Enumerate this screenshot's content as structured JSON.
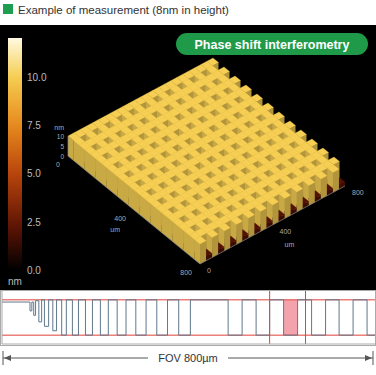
{
  "title": "Example of measurement (8nm in height)",
  "badge": "Phase shift interferometry",
  "chart_data": [
    {
      "type": "surface",
      "xlabel": "um",
      "ylabel": "um",
      "zlabel": "nm",
      "xlim": [
        0,
        800
      ],
      "ylim": [
        0,
        800
      ],
      "zlim": [
        0,
        10
      ],
      "xticks": [
        0,
        400,
        800
      ],
      "yticks": [
        0,
        400,
        800
      ],
      "zticks": [
        0,
        5,
        10
      ],
      "z": [
        [
          10,
          10,
          10,
          10,
          10,
          10,
          10,
          10,
          10,
          10,
          10,
          10,
          10,
          10,
          10,
          10,
          10,
          10,
          10,
          10,
          10,
          10,
          10,
          10
        ],
        [
          10,
          2,
          10,
          2,
          10,
          2,
          10,
          2,
          10,
          2,
          10,
          2,
          10,
          2,
          10,
          2,
          10,
          2,
          10,
          2,
          10,
          2,
          10,
          2
        ],
        [
          10,
          10,
          10,
          10,
          10,
          10,
          10,
          10,
          10,
          10,
          10,
          10,
          10,
          10,
          10,
          10,
          10,
          10,
          10,
          10,
          10,
          10,
          10,
          10
        ],
        [
          10,
          2,
          10,
          2,
          10,
          2,
          10,
          2,
          10,
          2,
          10,
          2,
          10,
          2,
          10,
          2,
          10,
          2,
          10,
          2,
          10,
          2,
          10,
          2
        ],
        [
          10,
          10,
          10,
          10,
          10,
          10,
          10,
          10,
          10,
          10,
          10,
          10,
          10,
          10,
          10,
          10,
          10,
          10,
          10,
          10,
          10,
          10,
          10,
          10
        ],
        [
          10,
          2,
          10,
          2,
          10,
          2,
          10,
          2,
          10,
          2,
          10,
          2,
          10,
          2,
          10,
          2,
          10,
          2,
          10,
          2,
          10,
          2,
          10,
          2
        ],
        [
          10,
          10,
          10,
          10,
          10,
          10,
          10,
          10,
          10,
          10,
          10,
          10,
          10,
          10,
          10,
          10,
          10,
          10,
          10,
          10,
          10,
          10,
          10,
          10
        ],
        [
          10,
          2,
          10,
          2,
          10,
          2,
          10,
          2,
          10,
          2,
          10,
          2,
          10,
          2,
          10,
          2,
          10,
          2,
          10,
          2,
          10,
          2,
          10,
          2
        ],
        [
          10,
          10,
          10,
          10,
          10,
          10,
          10,
          10,
          10,
          10,
          10,
          10,
          10,
          10,
          10,
          10,
          10,
          10,
          10,
          10,
          10,
          10,
          10,
          10
        ],
        [
          10,
          2,
          10,
          2,
          10,
          2,
          10,
          2,
          10,
          2,
          10,
          2,
          10,
          2,
          10,
          2,
          10,
          2,
          10,
          2,
          10,
          2,
          10,
          2
        ],
        [
          10,
          10,
          10,
          10,
          10,
          10,
          10,
          10,
          10,
          10,
          10,
          10,
          10,
          10,
          10,
          10,
          10,
          10,
          10,
          10,
          10,
          10,
          10,
          10
        ],
        [
          10,
          2,
          10,
          2,
          10,
          2,
          10,
          2,
          10,
          2,
          10,
          2,
          10,
          2,
          10,
          2,
          10,
          2,
          10,
          2,
          10,
          2,
          10,
          2
        ],
        [
          10,
          10,
          10,
          10,
          10,
          10,
          10,
          10,
          10,
          10,
          10,
          10,
          10,
          10,
          10,
          10,
          10,
          10,
          10,
          10,
          10,
          10,
          10,
          10
        ],
        [
          10,
          2,
          10,
          2,
          10,
          2,
          10,
          2,
          10,
          2,
          10,
          2,
          10,
          2,
          10,
          2,
          10,
          2,
          10,
          2,
          10,
          2,
          10,
          2
        ],
        [
          10,
          10,
          10,
          10,
          10,
          10,
          10,
          10,
          10,
          10,
          10,
          10,
          10,
          10,
          10,
          10,
          10,
          10,
          10,
          10,
          10,
          10,
          10,
          10
        ],
        [
          10,
          2,
          10,
          2,
          10,
          2,
          10,
          2,
          10,
          2,
          10,
          2,
          10,
          2,
          10,
          2,
          10,
          2,
          10,
          2,
          10,
          2,
          10,
          2
        ],
        [
          10,
          10,
          10,
          10,
          10,
          10,
          10,
          10,
          10,
          10,
          10,
          10,
          10,
          10,
          10,
          10,
          10,
          10,
          10,
          10,
          10,
          10,
          10,
          10
        ],
        [
          10,
          2,
          10,
          2,
          10,
          2,
          10,
          2,
          10,
          2,
          10,
          2,
          10,
          2,
          10,
          2,
          10,
          2,
          10,
          2,
          10,
          2,
          10,
          2
        ],
        [
          10,
          10,
          10,
          10,
          10,
          10,
          10,
          10,
          10,
          10,
          10,
          10,
          10,
          10,
          10,
          10,
          10,
          10,
          10,
          10,
          10,
          10,
          10,
          10
        ],
        [
          10,
          2,
          10,
          2,
          10,
          2,
          10,
          2,
          10,
          2,
          10,
          2,
          10,
          2,
          10,
          2,
          10,
          2,
          10,
          2,
          10,
          2,
          10,
          2
        ],
        [
          10,
          10,
          10,
          10,
          10,
          10,
          10,
          10,
          10,
          10,
          10,
          10,
          10,
          10,
          10,
          10,
          10,
          10,
          10,
          10,
          10,
          10,
          10,
          10
        ],
        [
          10,
          2,
          10,
          2,
          10,
          2,
          10,
          2,
          10,
          2,
          10,
          2,
          10,
          2,
          10,
          2,
          10,
          2,
          10,
          2,
          10,
          2,
          10,
          2
        ],
        [
          10,
          10,
          10,
          10,
          10,
          10,
          10,
          10,
          10,
          10,
          10,
          10,
          10,
          10,
          10,
          10,
          10,
          10,
          10,
          10,
          10,
          10,
          10,
          10
        ],
        [
          10,
          2,
          10,
          2,
          10,
          2,
          10,
          2,
          10,
          2,
          10,
          2,
          10,
          2,
          10,
          2,
          10,
          2,
          10,
          2,
          10,
          2,
          10,
          2
        ]
      ],
      "colorbar": {
        "range": [
          0,
          12
        ],
        "ticks": [
          {
            "value": 0,
            "label": "0.0"
          },
          {
            "value": 2.5,
            "label": "2.5"
          },
          {
            "value": 5,
            "label": "5.0"
          },
          {
            "value": 7.5,
            "label": "7.5"
          },
          {
            "value": 10,
            "label": "10.0"
          }
        ],
        "label": "nm"
      }
    },
    {
      "type": "line",
      "xlabel": "FOV 800µm",
      "xlim": [
        0,
        800
      ],
      "ylim": [
        0,
        12
      ],
      "tick_labels": false,
      "color": "#60788c",
      "x": [
        0,
        60,
        60,
        64,
        64,
        68,
        68,
        72,
        72,
        79,
        79,
        85,
        85,
        91,
        91,
        100,
        100,
        109,
        109,
        117,
        117,
        128,
        128,
        138,
        138,
        151,
        151,
        164,
        164,
        179,
        179,
        194,
        194,
        211,
        211,
        228,
        228,
        247,
        247,
        266,
        266,
        287,
        287,
        309,
        309,
        332,
        332,
        355,
        355,
        379,
        379,
        404,
        404,
        485,
        485,
        515,
        515,
        545,
        545,
        574,
        574,
        604,
        604,
        634,
        634,
        664,
        664,
        694,
        694,
        723,
        723,
        753,
        753,
        783,
        783,
        800
      ],
      "values": [
        9.5,
        9.5,
        7.5,
        7.5,
        9.5,
        9.5,
        6.5,
        6.5,
        9.8,
        9.8,
        5,
        5,
        10,
        10,
        4,
        4,
        10,
        10,
        3,
        3,
        10,
        10,
        2,
        2,
        10,
        10,
        2,
        2,
        10,
        10,
        2,
        2,
        10,
        10,
        2,
        2,
        10,
        10,
        2,
        2,
        10,
        10,
        2,
        2,
        10,
        10,
        2,
        2,
        10,
        10,
        2,
        2,
        10,
        10,
        2,
        2,
        10,
        10,
        2,
        2,
        10,
        10,
        2,
        2,
        10,
        10,
        2,
        2,
        10,
        10,
        2,
        2,
        10,
        10,
        2,
        2
      ],
      "reference_lines": {
        "x": [
          574,
          651
        ],
        "y": [
          10,
          2
        ],
        "color": "#e0403a"
      },
      "highlight": {
        "x": [
          604,
          634
        ],
        "y": [
          2,
          10
        ],
        "color": "#f4a3ad"
      }
    }
  ]
}
